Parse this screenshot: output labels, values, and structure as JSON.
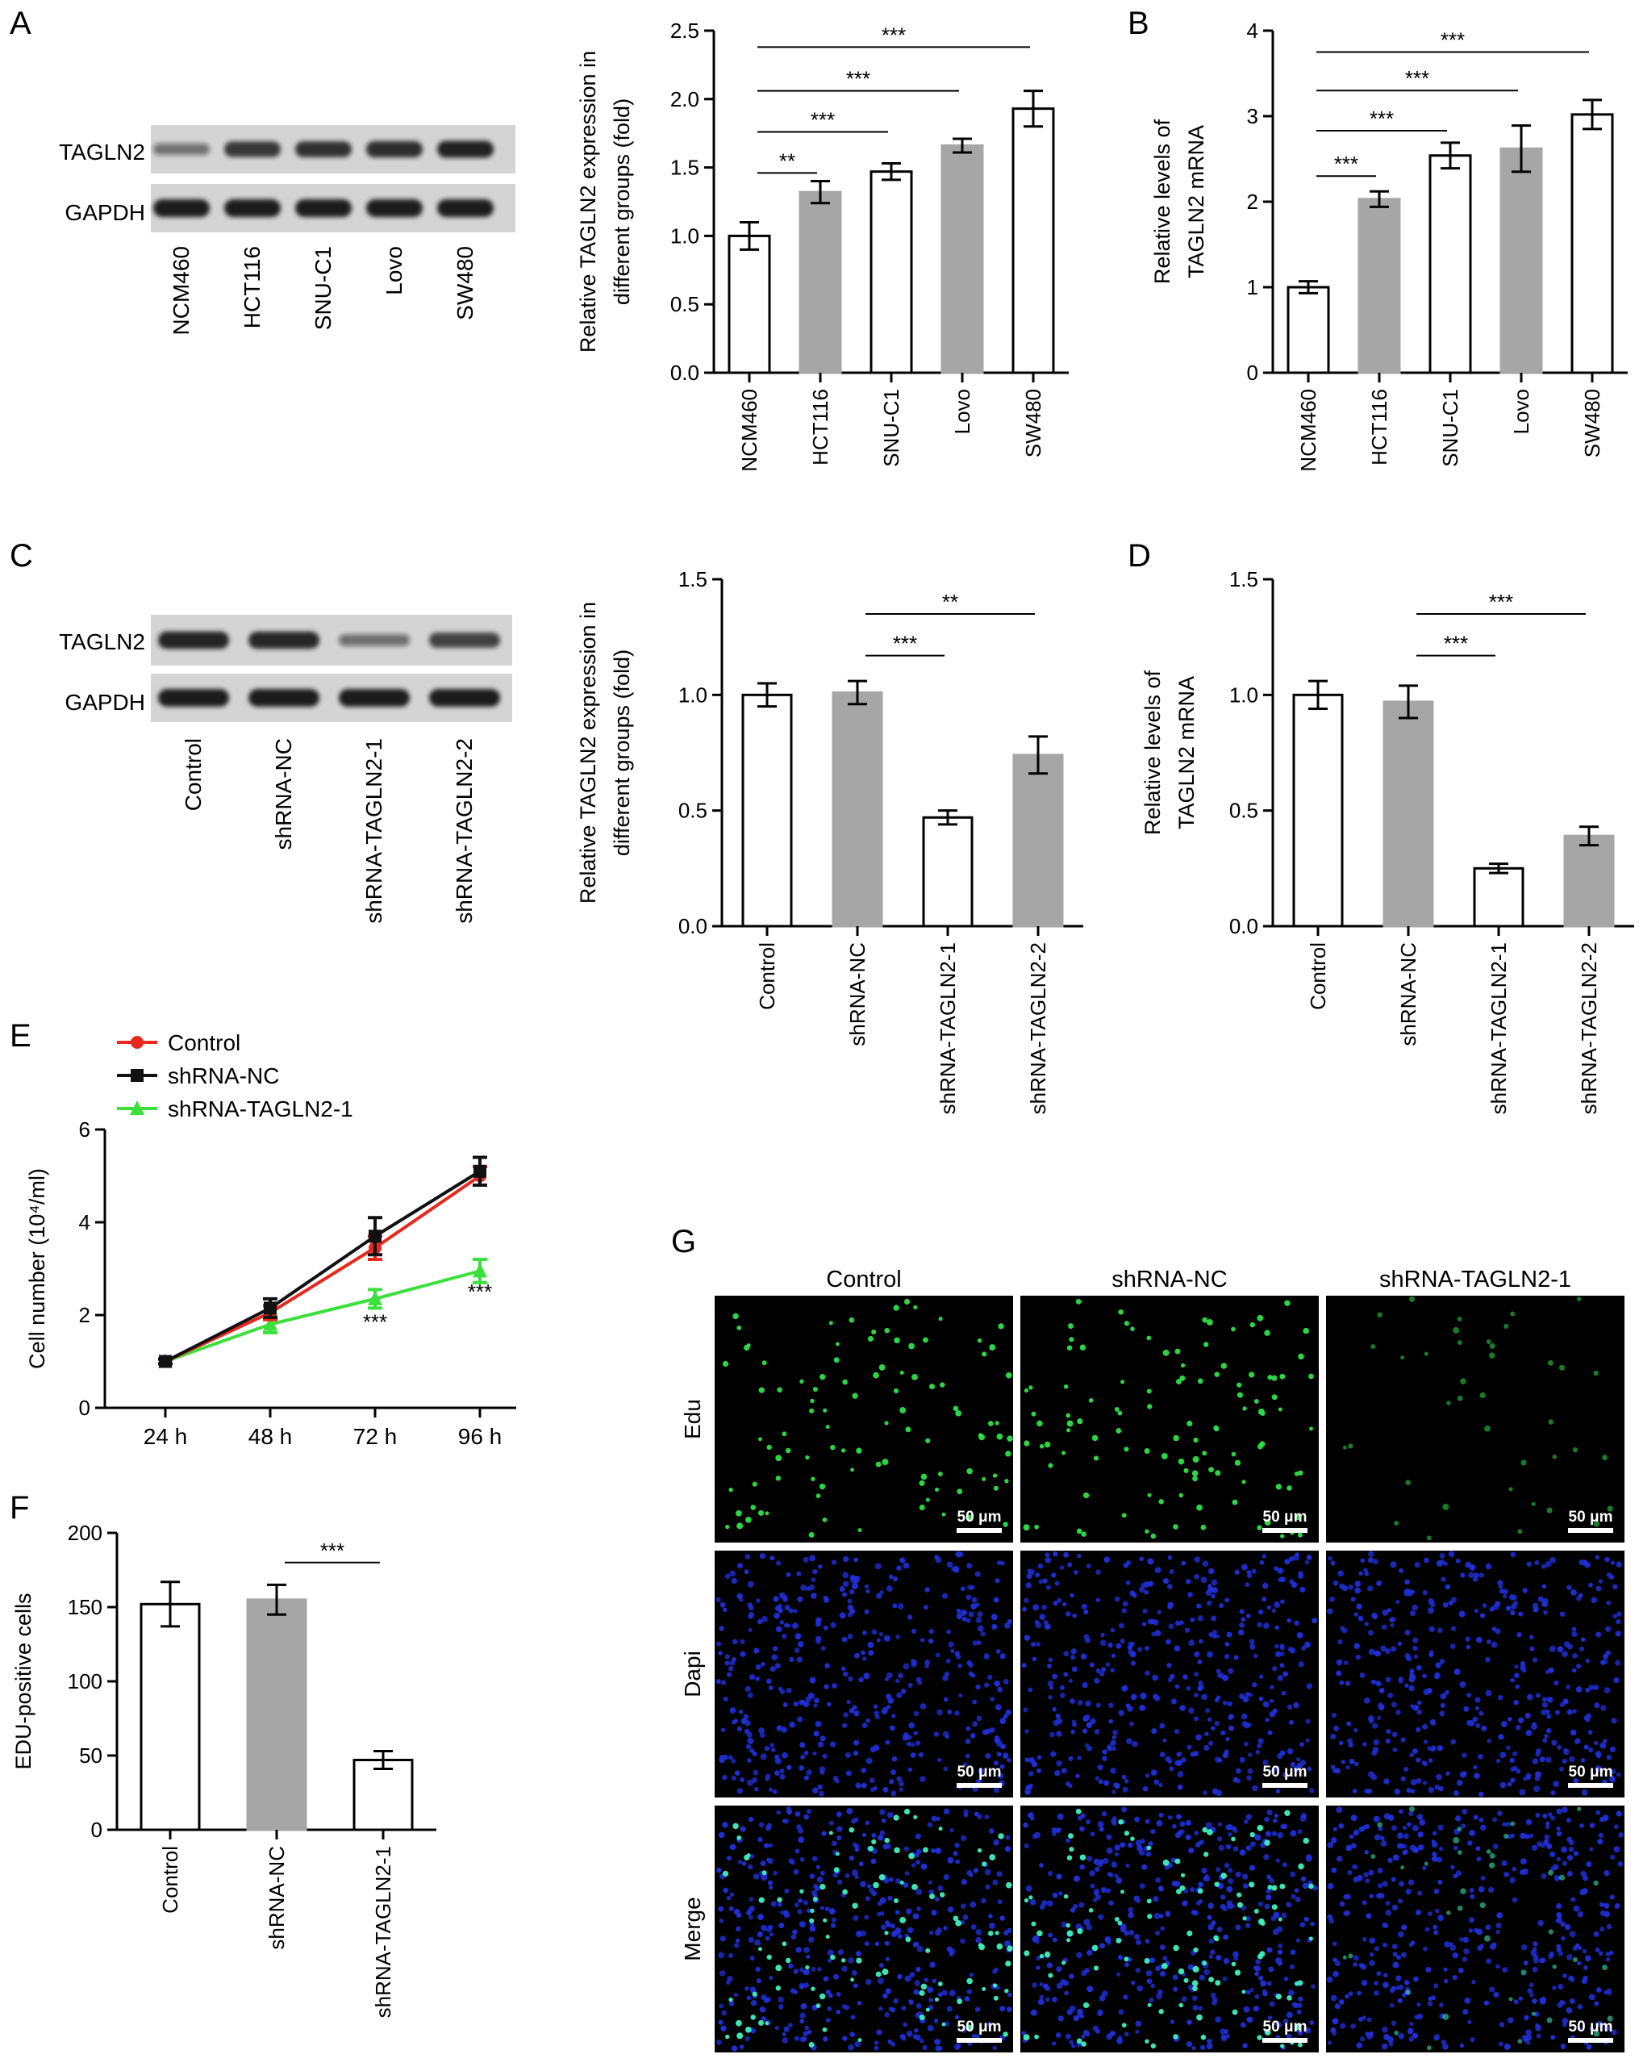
{
  "panel_letters": [
    "A",
    "B",
    "C",
    "D",
    "E",
    "F",
    "G"
  ],
  "western_blots": [
    {
      "panel": "A",
      "bands": [
        "TAGLN2",
        "GAPDH"
      ],
      "lanes": [
        "NCM460",
        "HCT116",
        "SNU-C1",
        "Lovo",
        "SW480"
      ],
      "intensity": {
        "TAGLN2": [
          0.35,
          0.78,
          0.82,
          0.85,
          0.92
        ],
        "GAPDH": [
          1,
          1,
          1,
          1,
          1
        ]
      }
    },
    {
      "panel": "C",
      "bands": [
        "TAGLN2",
        "GAPDH"
      ],
      "lanes": [
        "Control",
        "shRNA-NC",
        "shRNA-TAGLN2-1",
        "shRNA-TAGLN2-2"
      ],
      "intensity": {
        "TAGLN2": [
          0.95,
          0.93,
          0.38,
          0.72
        ],
        "GAPDH": [
          1,
          1,
          1,
          1
        ]
      }
    }
  ],
  "chart_data": [
    {
      "panel": "A",
      "type": "bar",
      "categories": [
        "NCM460",
        "HCT116",
        "SNU-C1",
        "Lovo",
        "SW480"
      ],
      "values": [
        1.0,
        1.32,
        1.47,
        1.66,
        1.93
      ],
      "errors": [
        0.1,
        0.08,
        0.06,
        0.05,
        0.13
      ],
      "fills": [
        "white",
        "gray",
        "white",
        "gray",
        "white"
      ],
      "ylabel": [
        "Relative TAGLN2 expression in",
        "different groups (fold)"
      ],
      "ylim": [
        0,
        2.5
      ],
      "yticks": [
        0.0,
        0.5,
        1.0,
        1.5,
        2.0,
        2.5
      ],
      "ytick_labels": [
        "0.0",
        "0.5",
        "1.0",
        "1.5",
        "2.0",
        "2.5"
      ],
      "significance": [
        {
          "from": 0,
          "to": 1,
          "label": "**",
          "y": 1.46
        },
        {
          "from": 0,
          "to": 2,
          "label": "***",
          "y": 1.76
        },
        {
          "from": 0,
          "to": 3,
          "label": "***",
          "y": 2.06
        },
        {
          "from": 0,
          "to": 4,
          "label": "***",
          "y": 2.38
        }
      ]
    },
    {
      "panel": "B",
      "type": "bar",
      "categories": [
        "NCM460",
        "HCT116",
        "SNU-C1",
        "Lovo",
        "SW480"
      ],
      "values": [
        1.0,
        2.03,
        2.54,
        2.62,
        3.02
      ],
      "errors": [
        0.07,
        0.09,
        0.15,
        0.27,
        0.17
      ],
      "fills": [
        "white",
        "gray",
        "white",
        "gray",
        "white"
      ],
      "ylabel": [
        "Relative levels of",
        "TAGLN2 mRNA"
      ],
      "ylim": [
        0,
        4
      ],
      "yticks": [
        0,
        1,
        2,
        3,
        4
      ],
      "ytick_labels": [
        "0",
        "1",
        "2",
        "3",
        "4"
      ],
      "significance": [
        {
          "from": 0,
          "to": 1,
          "label": "***",
          "y": 2.3
        },
        {
          "from": 0,
          "to": 2,
          "label": "***",
          "y": 2.83
        },
        {
          "from": 0,
          "to": 3,
          "label": "***",
          "y": 3.3
        },
        {
          "from": 0,
          "to": 4,
          "label": "***",
          "y": 3.75
        }
      ]
    },
    {
      "panel": "C",
      "type": "bar",
      "categories": [
        "Control",
        "shRNA-NC",
        "shRNA-TAGLN2-1",
        "shRNA-TAGLN2-2"
      ],
      "values": [
        1.0,
        1.01,
        0.47,
        0.74
      ],
      "errors": [
        0.05,
        0.05,
        0.03,
        0.08
      ],
      "fills": [
        "white",
        "gray",
        "white",
        "gray"
      ],
      "ylabel": [
        "Relative TAGLN2 expression in",
        "different groups (fold)"
      ],
      "ylim": [
        0,
        1.5
      ],
      "yticks": [
        0.0,
        0.5,
        1.0,
        1.5
      ],
      "ytick_labels": [
        "0.0",
        "0.5",
        "1.0",
        "1.5"
      ],
      "significance": [
        {
          "from": 1,
          "to": 2,
          "label": "***",
          "y": 1.17
        },
        {
          "from": 1,
          "to": 3,
          "label": "**",
          "y": 1.35
        }
      ]
    },
    {
      "panel": "D",
      "type": "bar",
      "categories": [
        "Control",
        "shRNA-NC",
        "shRNA-TAGLN2-1",
        "shRNA-TAGLN2-2"
      ],
      "values": [
        1.0,
        0.97,
        0.25,
        0.39
      ],
      "errors": [
        0.06,
        0.07,
        0.02,
        0.04
      ],
      "fills": [
        "white",
        "gray",
        "white",
        "gray"
      ],
      "ylabel": [
        "Relative levels of",
        "TAGLN2 mRNA"
      ],
      "ylim": [
        0,
        1.5
      ],
      "yticks": [
        0.0,
        0.5,
        1.0,
        1.5
      ],
      "ytick_labels": [
        "0.0",
        "0.5",
        "1.0",
        "1.5"
      ],
      "significance": [
        {
          "from": 1,
          "to": 2,
          "label": "***",
          "y": 1.17
        },
        {
          "from": 1,
          "to": 3,
          "label": "***",
          "y": 1.35
        }
      ]
    },
    {
      "panel": "E",
      "type": "line",
      "x": [
        "24 h",
        "48 h",
        "72 h",
        "96 h"
      ],
      "series": [
        {
          "name": "Control",
          "color": "#e8281e",
          "marker": "circle",
          "values": [
            1.0,
            2.05,
            3.45,
            5.0
          ],
          "errors": [
            0.05,
            0.15,
            0.25,
            0.2
          ]
        },
        {
          "name": "shRNA-NC",
          "color": "#111111",
          "marker": "square",
          "values": [
            1.0,
            2.15,
            3.7,
            5.1
          ],
          "errors": [
            0.05,
            0.2,
            0.4,
            0.3
          ]
        },
        {
          "name": "shRNA-TAGLN2-1",
          "color": "#3ce03c",
          "marker": "triangle",
          "values": [
            1.0,
            1.8,
            2.35,
            2.95
          ],
          "errors": [
            0.05,
            0.18,
            0.2,
            0.25
          ]
        }
      ],
      "ylabel": "Cell number (10⁴/ml)",
      "ylim": [
        0,
        6
      ],
      "yticks": [
        0,
        2,
        4,
        6
      ],
      "ytick_labels": [
        "0",
        "2",
        "4",
        "6"
      ],
      "annotations": [
        {
          "x_index": 2,
          "y": 1.7,
          "label": "***"
        },
        {
          "x_index": 3,
          "y": 2.35,
          "label": "***"
        }
      ],
      "legend_placement": "top-left"
    },
    {
      "panel": "F",
      "type": "bar",
      "categories": [
        "Control",
        "shRNA-NC",
        "shRNA-TAGLN2-1"
      ],
      "values": [
        152,
        155,
        47
      ],
      "errors": [
        15,
        10,
        6
      ],
      "fills": [
        "white",
        "gray",
        "white"
      ],
      "ylabel": [
        "EDU-positive cells"
      ],
      "ylim": [
        0,
        200
      ],
      "yticks": [
        0,
        50,
        100,
        150,
        200
      ],
      "ytick_labels": [
        "0",
        "50",
        "100",
        "150",
        "200"
      ],
      "significance": [
        {
          "from": 1,
          "to": 2,
          "label": "***",
          "y": 180
        }
      ]
    }
  ],
  "microscopy": {
    "panel": "G",
    "columns": [
      "Control",
      "shRNA-NC",
      "shRNA-TAGLN2-1"
    ],
    "rows": [
      "Edu",
      "Dapi",
      "Merge"
    ],
    "scale_bar": "50 μm",
    "edu_density": [
      0.9,
      1.0,
      0.35
    ]
  }
}
